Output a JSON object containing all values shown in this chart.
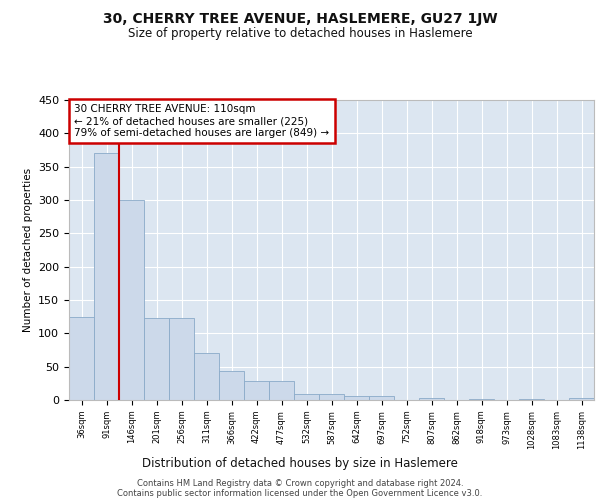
{
  "title": "30, CHERRY TREE AVENUE, HASLEMERE, GU27 1JW",
  "subtitle": "Size of property relative to detached houses in Haslemere",
  "xlabel": "Distribution of detached houses by size in Haslemere",
  "ylabel": "Number of detached properties",
  "bar_color": "#ccd9ea",
  "bar_edge_color": "#8aaac8",
  "background_color": "#dce6f1",
  "grid_color": "#ffffff",
  "vline_color": "#cc0000",
  "vline_x": 1.5,
  "annotation_text": "30 CHERRY TREE AVENUE: 110sqm\n← 21% of detached houses are smaller (225)\n79% of semi-detached houses are larger (849) →",
  "annotation_box_color": "#ffffff",
  "annotation_box_edge": "#cc0000",
  "categories": [
    "36sqm",
    "91sqm",
    "146sqm",
    "201sqm",
    "256sqm",
    "311sqm",
    "366sqm",
    "422sqm",
    "477sqm",
    "532sqm",
    "587sqm",
    "642sqm",
    "697sqm",
    "752sqm",
    "807sqm",
    "862sqm",
    "918sqm",
    "973sqm",
    "1028sqm",
    "1083sqm",
    "1138sqm"
  ],
  "values": [
    125,
    370,
    300,
    123,
    123,
    70,
    43,
    29,
    29,
    9,
    9,
    6,
    6,
    0,
    3,
    0,
    2,
    0,
    2,
    0,
    3
  ],
  "ylim": [
    0,
    450
  ],
  "yticks": [
    0,
    50,
    100,
    150,
    200,
    250,
    300,
    350,
    400,
    450
  ],
  "footer_line1": "Contains HM Land Registry data © Crown copyright and database right 2024.",
  "footer_line2": "Contains public sector information licensed under the Open Government Licence v3.0."
}
